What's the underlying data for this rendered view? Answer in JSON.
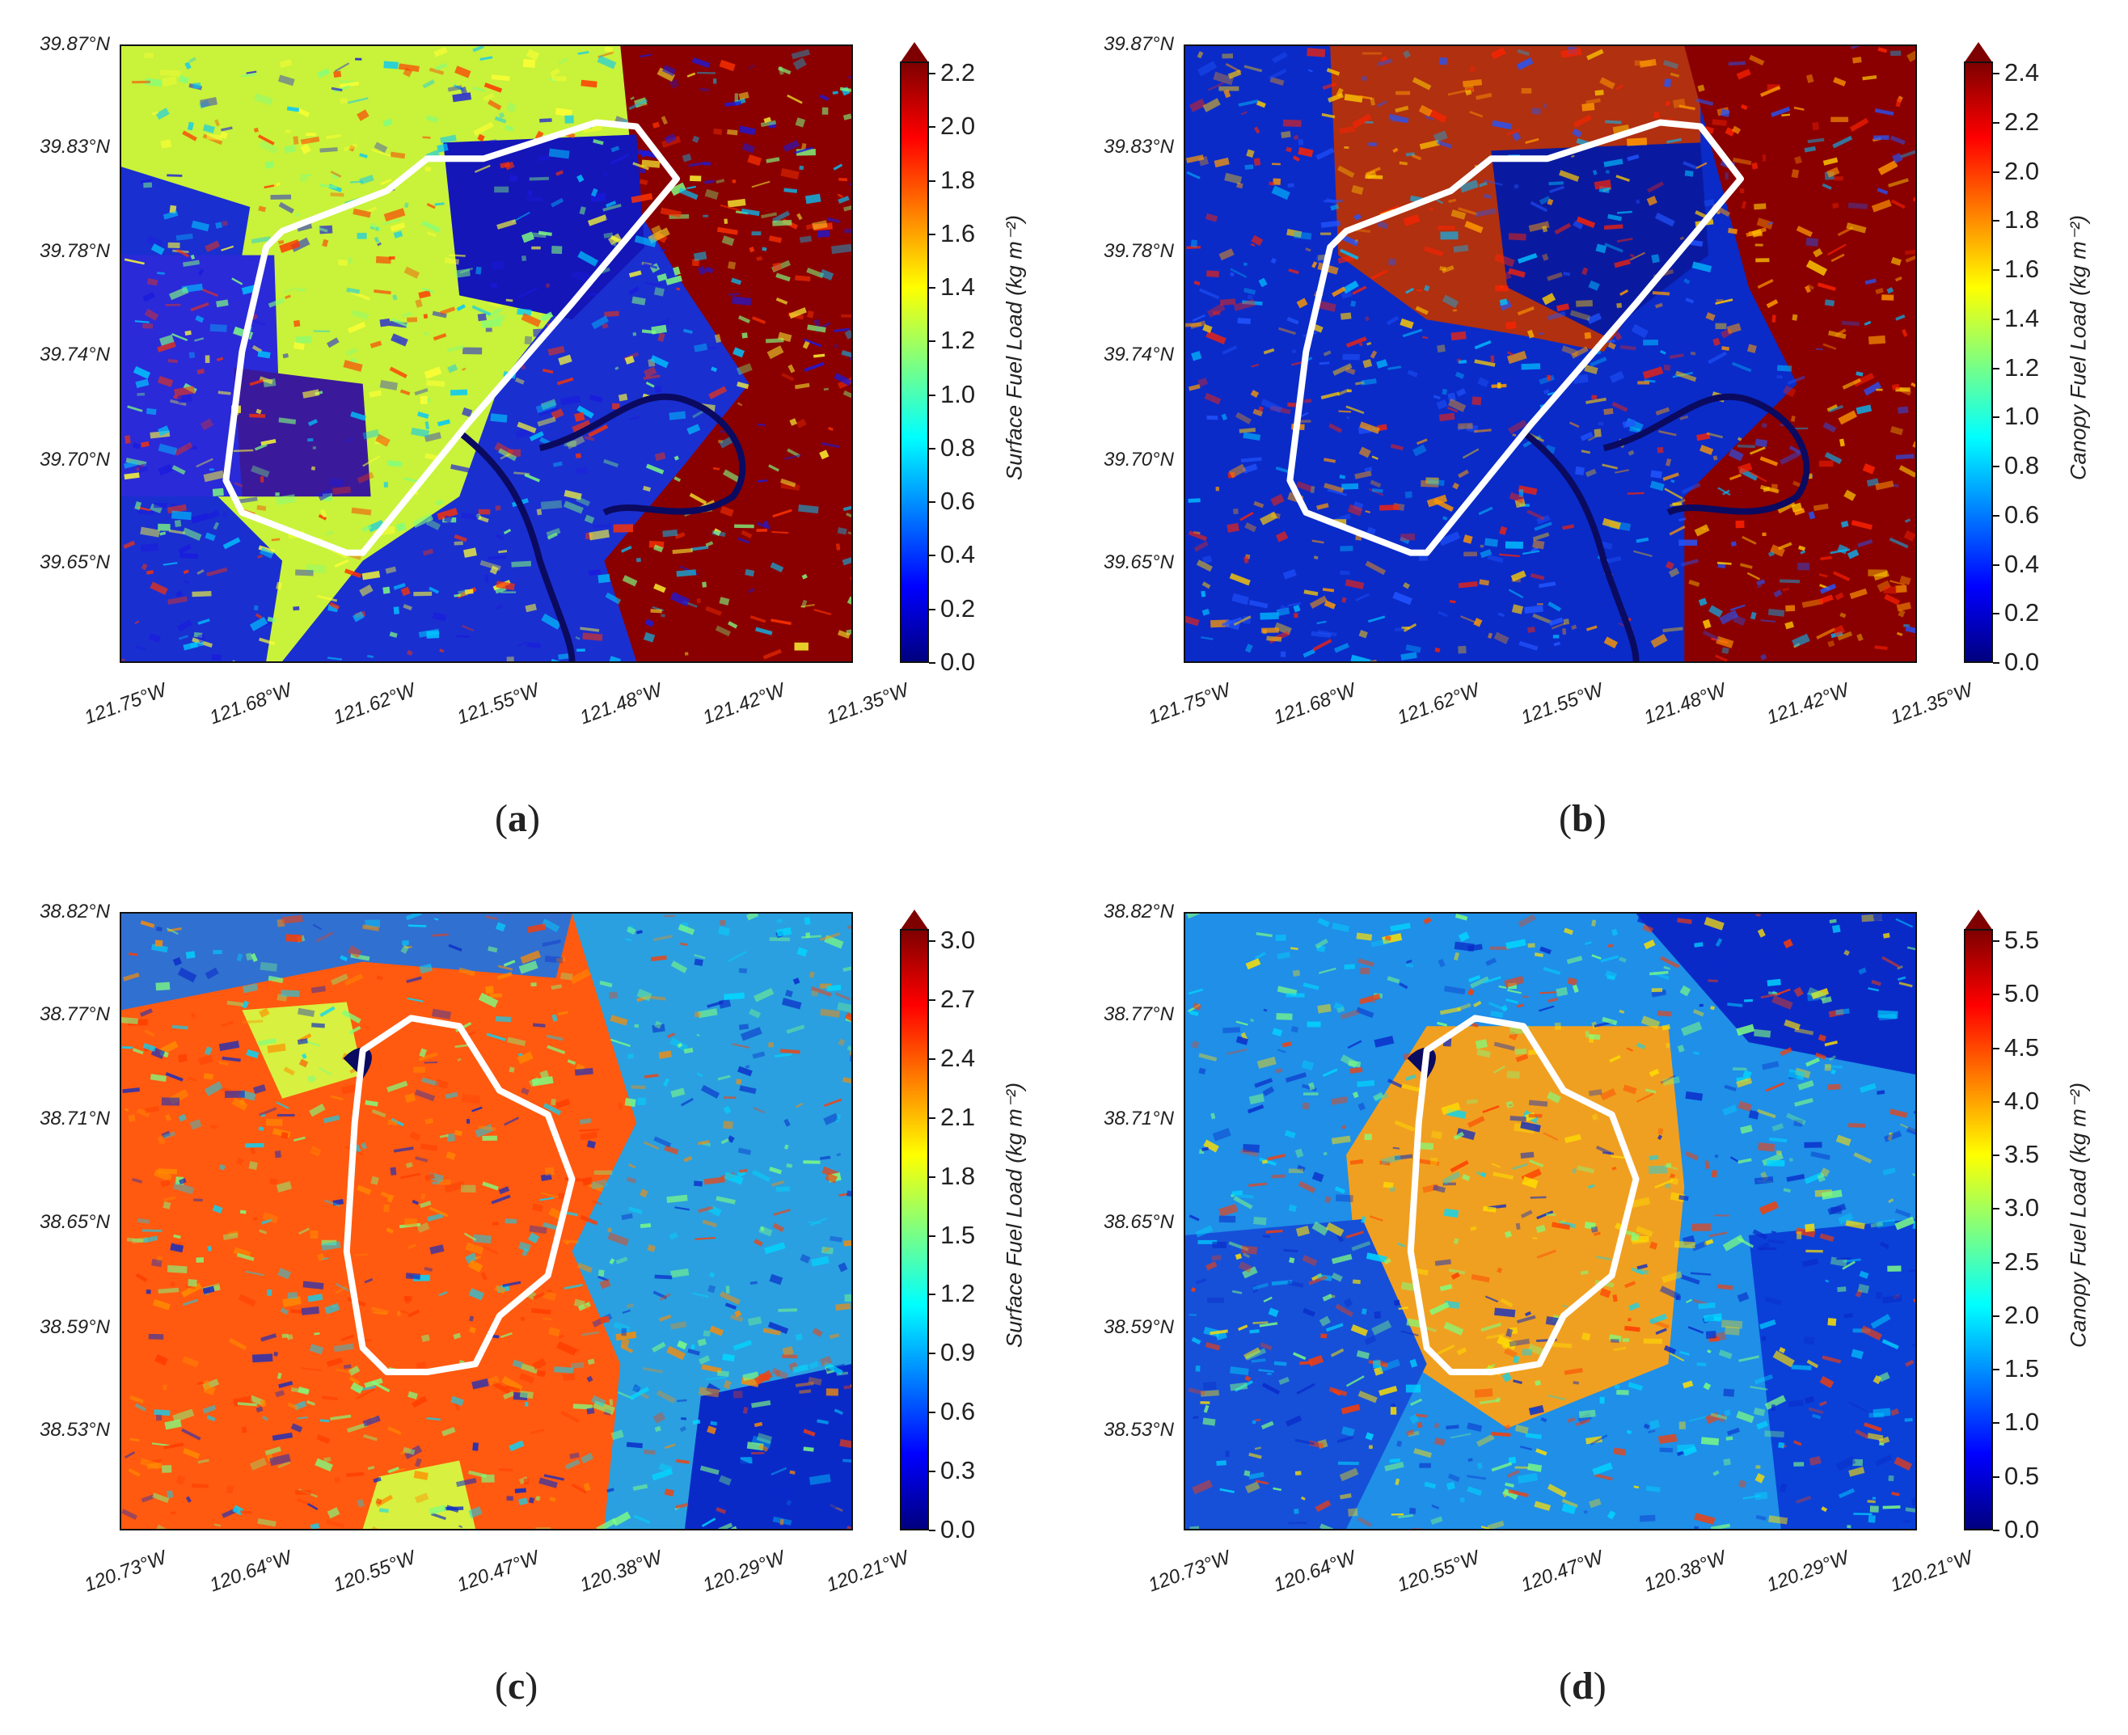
{
  "panels": [
    {
      "id": "a",
      "caption_open": "(",
      "caption_letter": "a",
      "caption_close": ")",
      "y_ticks": [
        "39.87°N",
        "39.83°N",
        "39.78°N",
        "39.74°N",
        "39.70°N",
        "39.65°N"
      ],
      "x_ticks": [
        "121.75°W",
        "121.68°W",
        "121.62°W",
        "121.55°W",
        "121.48°W",
        "121.42°W",
        "121.35°W"
      ],
      "colorbar_ticks": [
        "2.2",
        "2.0",
        "1.8",
        "1.6",
        "1.4",
        "1.2",
        "1.0",
        "0.8",
        "0.6",
        "0.4",
        "0.2",
        "0.0"
      ],
      "colorbar_label": "Surface Fuel Load (kg m⁻²)",
      "map_style": "a"
    },
    {
      "id": "b",
      "caption_open": "(",
      "caption_letter": "b",
      "caption_close": ")",
      "y_ticks": [
        "39.87°N",
        "39.83°N",
        "39.78°N",
        "39.74°N",
        "39.70°N",
        "39.65°N"
      ],
      "x_ticks": [
        "121.75°W",
        "121.68°W",
        "121.62°W",
        "121.55°W",
        "121.48°W",
        "121.42°W",
        "121.35°W"
      ],
      "colorbar_ticks": [
        "2.4",
        "2.2",
        "2.0",
        "1.8",
        "1.6",
        "1.4",
        "1.2",
        "1.0",
        "0.8",
        "0.6",
        "0.4",
        "0.2",
        "0.0"
      ],
      "colorbar_label": "Canopy Fuel Load (kg m⁻²)",
      "map_style": "b"
    },
    {
      "id": "c",
      "caption_open": "(",
      "caption_letter": "c",
      "caption_close": ")",
      "y_ticks": [
        "38.82°N",
        "38.77°N",
        "38.71°N",
        "38.65°N",
        "38.59°N",
        "38.53°N"
      ],
      "x_ticks": [
        "120.73°W",
        "120.64°W",
        "120.55°W",
        "120.47°W",
        "120.38°W",
        "120.29°W",
        "120.21°W"
      ],
      "colorbar_ticks": [
        "3.0",
        "2.7",
        "2.4",
        "2.1",
        "1.8",
        "1.5",
        "1.2",
        "0.9",
        "0.6",
        "0.3",
        "0.0"
      ],
      "colorbar_label": "Surface Fuel Load (kg m⁻²)",
      "map_style": "c"
    },
    {
      "id": "d",
      "caption_open": "(",
      "caption_letter": "d",
      "caption_close": ")",
      "y_ticks": [
        "38.82°N",
        "38.77°N",
        "38.71°N",
        "38.65°N",
        "38.59°N",
        "38.53°N"
      ],
      "x_ticks": [
        "120.73°W",
        "120.64°W",
        "120.55°W",
        "120.47°W",
        "120.38°W",
        "120.29°W",
        "120.21°W"
      ],
      "colorbar_ticks": [
        "5.5",
        "5.0",
        "4.5",
        "4.0",
        "3.5",
        "3.0",
        "2.5",
        "2.0",
        "1.5",
        "1.0",
        "0.5",
        "0.0"
      ],
      "colorbar_label": "Canopy Fuel Load (kg m⁻²)",
      "map_style": "d"
    }
  ],
  "colors": {
    "jet": [
      "#00007f",
      "#0000ff",
      "#007fff",
      "#00ffff",
      "#7fff7f",
      "#ffff00",
      "#ff7f00",
      "#ff0000",
      "#7f0000"
    ],
    "outline": "#ffffff"
  }
}
